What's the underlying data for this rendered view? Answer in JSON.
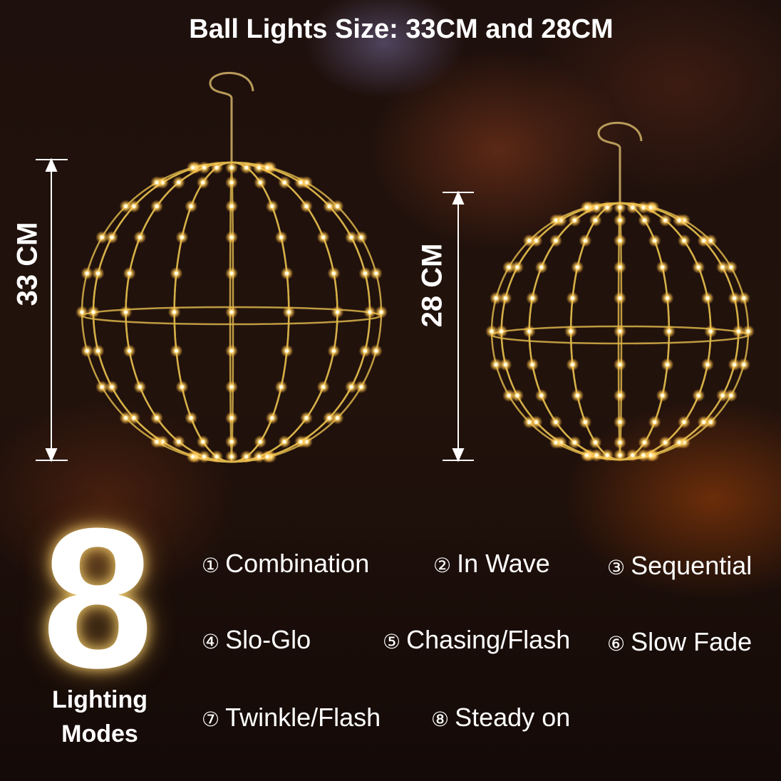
{
  "title": "Ball Lights Size: 33CM and 28CM",
  "balls": [
    {
      "size_label": "33 CM"
    },
    {
      "size_label": "28 CM"
    }
  ],
  "colors": {
    "led": "#ffd66b",
    "wire": "#d9b44a",
    "text": "#ffffff"
  },
  "modes_count": "8",
  "modes_label_line1": "Lighting",
  "modes_label_line2": "Modes",
  "modes": [
    {
      "num": "①",
      "label": "Combination"
    },
    {
      "num": "②",
      "label": "In Wave"
    },
    {
      "num": "③",
      "label": "Sequential"
    },
    {
      "num": "④",
      "label": "Slo-Glo"
    },
    {
      "num": "⑤",
      "label": "Chasing/Flash"
    },
    {
      "num": "⑥",
      "label": "Slow Fade"
    },
    {
      "num": "⑦",
      "label": "Twinkle/Flash"
    },
    {
      "num": "⑧",
      "label": "Steady on"
    }
  ]
}
